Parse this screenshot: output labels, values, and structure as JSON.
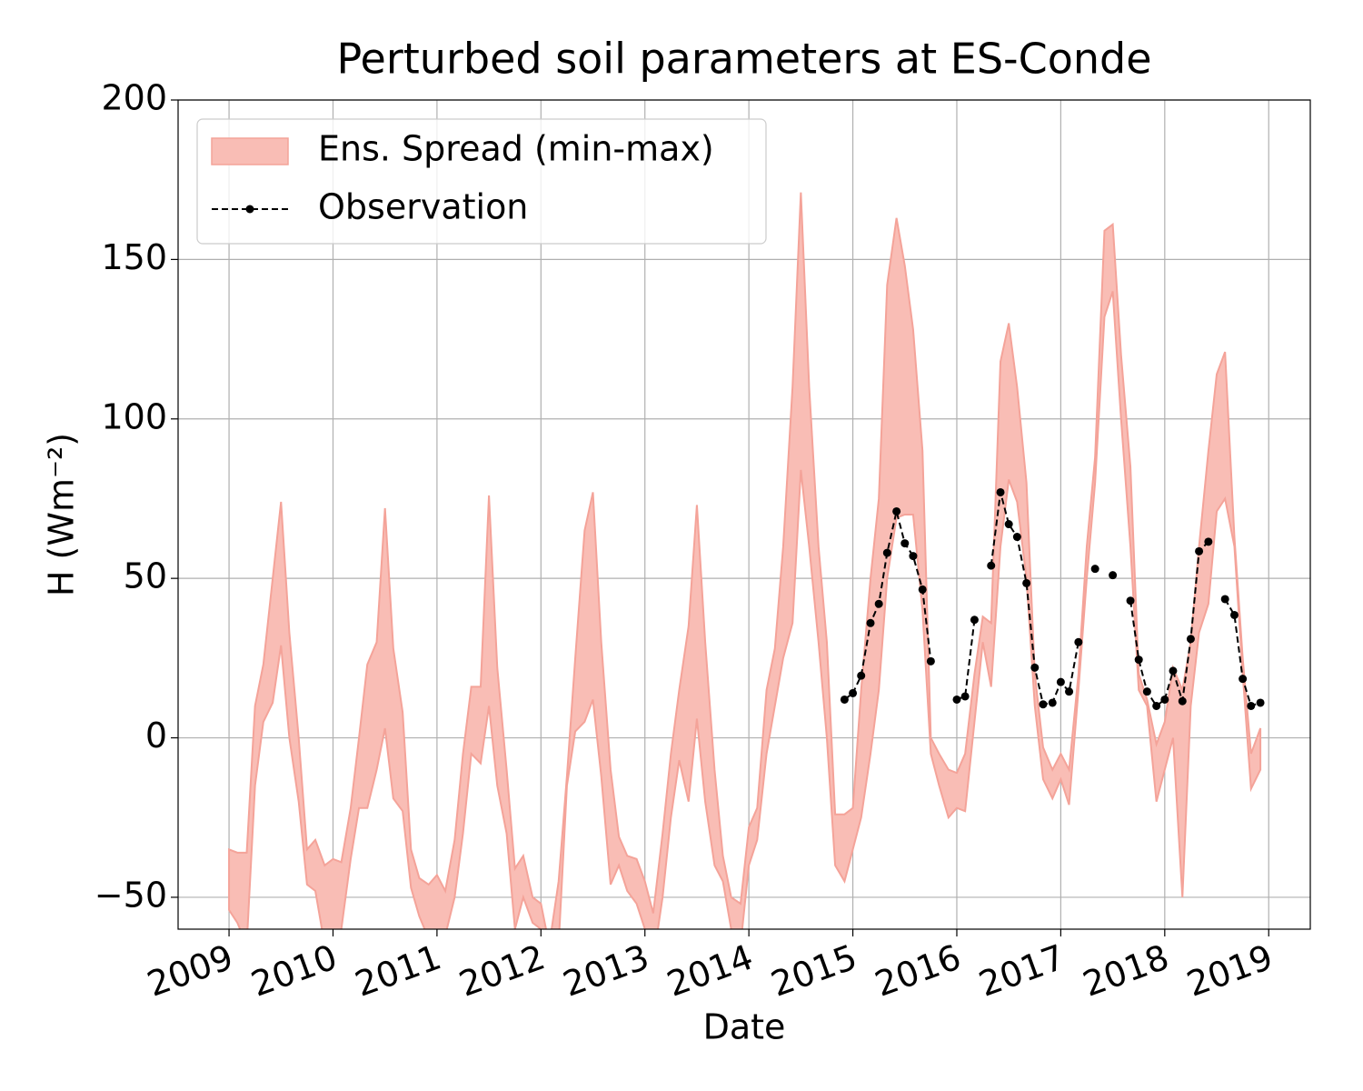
{
  "chart_data": {
    "type": "line",
    "title": "Perturbed soil parameters at ES-Conde",
    "x_label": "Date",
    "y_label": "H  (Wm⁻²)",
    "xlim": [
      2008.51,
      2019.4
    ],
    "xticks": [
      2009,
      2010,
      2011,
      2012,
      2013,
      2014,
      2015,
      2016,
      2017,
      2018,
      2019
    ],
    "ylim": [
      -60,
      200
    ],
    "yticks": [
      {
        "value": -50,
        "label": "−50"
      },
      0,
      50,
      100,
      150,
      200
    ],
    "grid": true,
    "legend": "upper left",
    "x": [
      2009.0,
      2009.08,
      2009.17,
      2009.25,
      2009.33,
      2009.42,
      2009.5,
      2009.58,
      2009.67,
      2009.75,
      2009.83,
      2009.92,
      2010.0,
      2010.08,
      2010.17,
      2010.25,
      2010.33,
      2010.42,
      2010.5,
      2010.58,
      2010.67,
      2010.75,
      2010.83,
      2010.92,
      2011.0,
      2011.08,
      2011.17,
      2011.25,
      2011.33,
      2011.42,
      2011.5,
      2011.58,
      2011.67,
      2011.75,
      2011.83,
      2011.92,
      2012.0,
      2012.08,
      2012.17,
      2012.25,
      2012.33,
      2012.42,
      2012.5,
      2012.58,
      2012.67,
      2012.75,
      2012.83,
      2012.92,
      2013.0,
      2013.08,
      2013.17,
      2013.25,
      2013.33,
      2013.42,
      2013.5,
      2013.58,
      2013.67,
      2013.75,
      2013.83,
      2013.92,
      2014.0,
      2014.08,
      2014.17,
      2014.25,
      2014.33,
      2014.42,
      2014.5,
      2014.58,
      2014.67,
      2014.75,
      2014.83,
      2014.92,
      2015.0,
      2015.08,
      2015.17,
      2015.25,
      2015.33,
      2015.42,
      2015.5,
      2015.58,
      2015.67,
      2015.75,
      2015.83,
      2015.92,
      2016.0,
      2016.08,
      2016.17,
      2016.25,
      2016.33,
      2016.42,
      2016.5,
      2016.58,
      2016.67,
      2016.75,
      2016.83,
      2016.92,
      2017.0,
      2017.08,
      2017.17,
      2017.25,
      2017.33,
      2017.42,
      2017.5,
      2017.58,
      2017.67,
      2017.75,
      2017.83,
      2017.92,
      2018.0,
      2018.08,
      2018.17,
      2018.25,
      2018.33,
      2018.42,
      2018.5,
      2018.58,
      2018.67,
      2018.75,
      2018.83,
      2018.92
    ],
    "series": [
      {
        "name": "Ens. Spread (min-max)",
        "type": "band",
        "color": "#f9bdb5",
        "edge_color": "#f4a399",
        "upper": [
          -35,
          -36,
          -36,
          10,
          23,
          50,
          74,
          33,
          0,
          -35,
          -32,
          -40,
          -38,
          -39,
          -22,
          0,
          23,
          30,
          72,
          28,
          8,
          -35,
          -44,
          -46,
          -43,
          -48,
          -32,
          -5,
          16,
          16,
          76,
          22,
          -10,
          -41,
          -37,
          -50,
          -52,
          -65,
          -45,
          -12,
          25,
          65,
          77,
          30,
          -10,
          -31,
          -37,
          -38,
          -45,
          -55,
          -30,
          -5,
          15,
          35,
          73,
          30,
          -10,
          -37,
          -50,
          -52,
          -28,
          -22,
          15,
          28,
          60,
          110,
          171,
          110,
          60,
          30,
          -24,
          -24,
          -22,
          15,
          50,
          75,
          142,
          163,
          148,
          128,
          90,
          0,
          -5,
          -10,
          -11,
          -5,
          20,
          38,
          36,
          118,
          130,
          110,
          80,
          20,
          -3,
          -10,
          -5,
          -10,
          20,
          60,
          88,
          159,
          161,
          120,
          85,
          20,
          12,
          -2,
          5,
          22,
          15,
          30,
          60,
          90,
          114,
          121,
          63,
          25,
          -5,
          3
        ],
        "lower": [
          -54,
          -58,
          -65,
          -15,
          5,
          11,
          29,
          0,
          -20,
          -46,
          -48,
          -65,
          -68,
          -60,
          -38,
          -22,
          -22,
          -10,
          3,
          -19,
          -23,
          -47,
          -56,
          -63,
          -65,
          -62,
          -50,
          -30,
          -5,
          -8,
          10,
          -15,
          -30,
          -60,
          -50,
          -58,
          -60,
          -70,
          -65,
          -15,
          2,
          5,
          12,
          -12,
          -46,
          -40,
          -48,
          -52,
          -60,
          -70,
          -50,
          -25,
          -7,
          -20,
          6,
          -20,
          -40,
          -45,
          -60,
          -65,
          -40,
          -32,
          -5,
          10,
          25,
          36,
          84,
          60,
          30,
          0,
          -40,
          -45,
          -35,
          -25,
          -5,
          15,
          50,
          69,
          70,
          70,
          40,
          -5,
          -15,
          -25,
          -22,
          -23,
          5,
          30,
          16,
          60,
          81,
          74,
          50,
          10,
          -13,
          -19,
          -13,
          -21,
          15,
          50,
          80,
          132,
          140,
          100,
          60,
          15,
          10,
          -20,
          -10,
          0,
          -50,
          10,
          33,
          42,
          71,
          75,
          60,
          20,
          -16,
          -10
        ]
      },
      {
        "name": "Observation",
        "color": "#000000",
        "values": [
          null,
          null,
          null,
          null,
          null,
          null,
          null,
          null,
          null,
          null,
          null,
          null,
          null,
          null,
          null,
          null,
          null,
          null,
          null,
          null,
          null,
          null,
          null,
          null,
          null,
          null,
          null,
          null,
          null,
          null,
          null,
          null,
          null,
          null,
          null,
          null,
          null,
          null,
          null,
          null,
          null,
          null,
          null,
          null,
          null,
          null,
          null,
          null,
          null,
          null,
          null,
          null,
          null,
          null,
          null,
          null,
          null,
          null,
          null,
          null,
          null,
          null,
          null,
          null,
          null,
          null,
          null,
          null,
          null,
          null,
          null,
          12,
          14,
          19.5,
          36,
          42,
          58,
          71,
          61,
          57,
          46.5,
          24,
          null,
          null,
          12,
          13,
          37,
          null,
          54,
          77,
          67,
          63,
          48.5,
          22,
          10.5,
          11,
          17.5,
          14.5,
          30,
          null,
          53,
          null,
          51,
          null,
          43,
          24.5,
          14.5,
          10,
          12,
          21,
          11.5,
          31,
          58.5,
          61.5,
          null,
          43.5,
          38.5,
          18.5,
          10,
          11
        ]
      }
    ]
  }
}
